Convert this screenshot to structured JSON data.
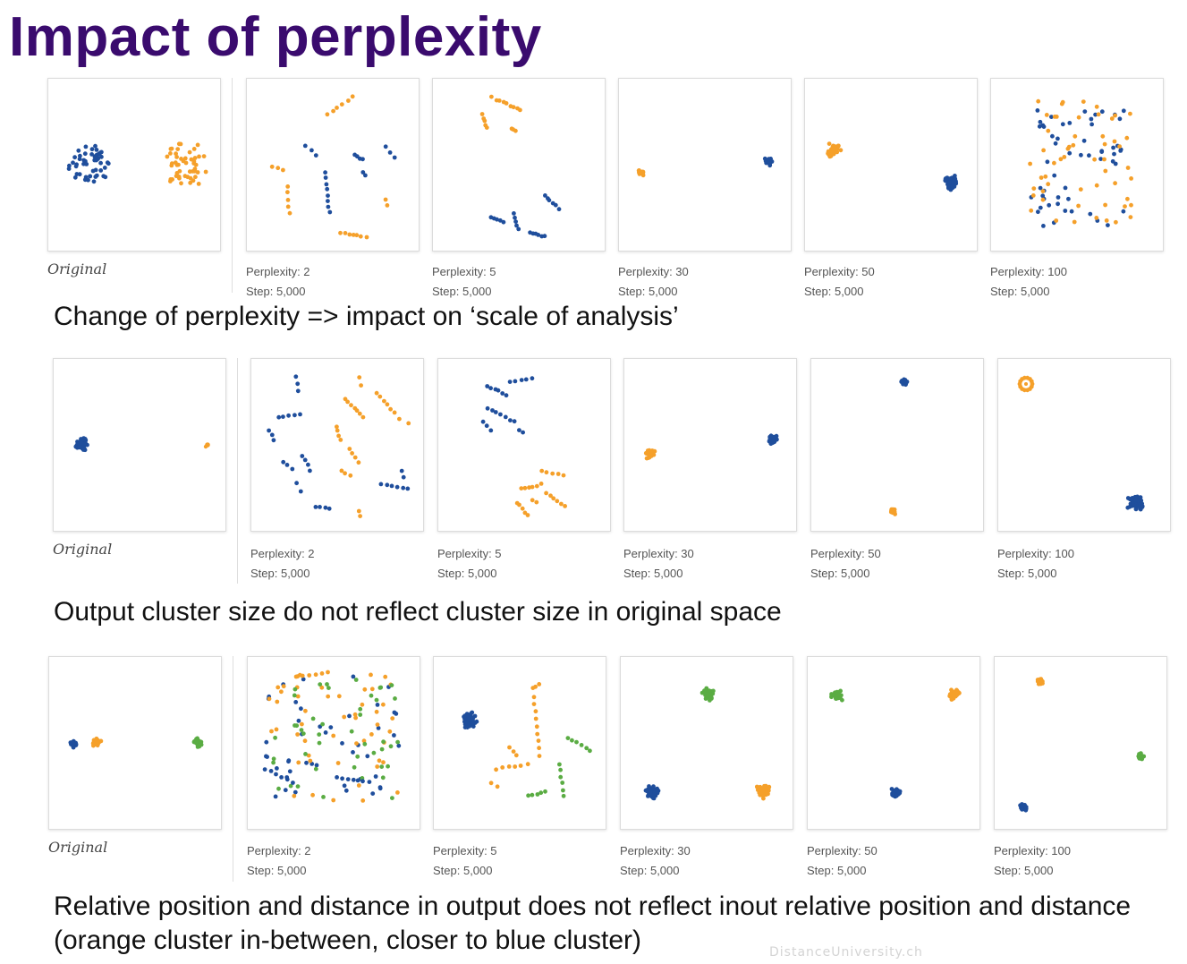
{
  "title": "Impact of perplexity",
  "original_label": "Original",
  "rows": [
    {
      "caption": "Change of perplexity => impact on ‘scale of analysis’",
      "panels": [
        {
          "line1": "Perplexity: 2",
          "line2": "Step: 5,000"
        },
        {
          "line1": "Perplexity: 5",
          "line2": "Step: 5,000"
        },
        {
          "line1": "Perplexity: 30",
          "line2": "Step: 5,000"
        },
        {
          "line1": "Perplexity: 50",
          "line2": "Step: 5,000"
        },
        {
          "line1": "Perplexity: 100",
          "line2": "Step: 5,000"
        }
      ]
    },
    {
      "caption": "Output cluster size do not reflect cluster size in original space",
      "panels": [
        {
          "line1": "Perplexity: 2",
          "line2": "Step: 5,000"
        },
        {
          "line1": "Perplexity: 5",
          "line2": "Step: 5,000"
        },
        {
          "line1": "Perplexity: 30",
          "line2": "Step: 5,000"
        },
        {
          "line1": "Perplexity: 50",
          "line2": "Step: 5,000"
        },
        {
          "line1": "Perplexity: 100",
          "line2": "Step: 5,000"
        }
      ]
    },
    {
      "caption": "Relative position and distance in output does not reflect inout relative position and distance (orange cluster in-between, closer to blue cluster)",
      "panels": [
        {
          "line1": "Perplexity: 2",
          "line2": "Step: 5,000"
        },
        {
          "line1": "Perplexity: 5",
          "line2": "Step: 5,000"
        },
        {
          "line1": "Perplexity: 30",
          "line2": "Step: 5,000"
        },
        {
          "line1": "Perplexity: 50",
          "line2": "Step: 5,000"
        },
        {
          "line1": "Perplexity: 100",
          "line2": "Step: 5,000"
        }
      ]
    }
  ],
  "colors": {
    "blue": "#1f4e9c",
    "orange": "#f5a02a",
    "green": "#5aac43",
    "title": "#3a0b6e"
  },
  "watermark": "DistanceUniversity.ch"
}
